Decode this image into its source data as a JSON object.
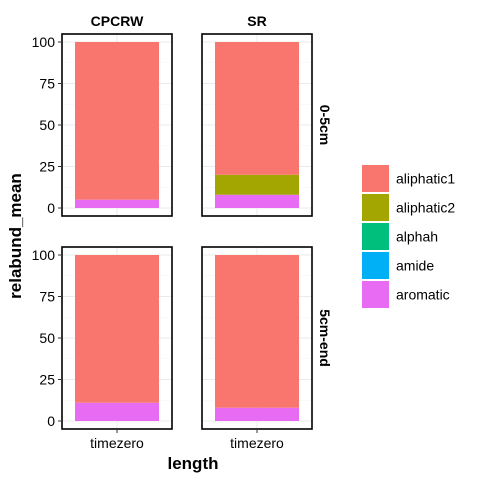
{
  "chart_data": {
    "type": "bar",
    "stacked": true,
    "xlabel": "length",
    "ylabel": "relabund_mean",
    "ylim": [
      0,
      100
    ],
    "yticks": [
      0,
      25,
      50,
      75,
      100
    ],
    "facet_cols": [
      "CPCRW",
      "SR"
    ],
    "facet_rows": [
      "0-5cm",
      "5cm-end"
    ],
    "categories": [
      "timezero"
    ],
    "legend_position": "right",
    "legend": [
      {
        "name": "aliphatic1",
        "color": "#F8766D"
      },
      {
        "name": "aliphatic2",
        "color": "#A3A500"
      },
      {
        "name": "alphah",
        "color": "#00BF7D"
      },
      {
        "name": "amide",
        "color": "#00B0F6"
      },
      {
        "name": "aromatic",
        "color": "#E76BF3"
      }
    ],
    "panels": [
      {
        "col": "CPCRW",
        "row": "0-5cm",
        "segments": [
          {
            "group": "aromatic",
            "value": 5
          },
          {
            "group": "aliphatic1",
            "value": 95
          }
        ]
      },
      {
        "col": "SR",
        "row": "0-5cm",
        "segments": [
          {
            "group": "aromatic",
            "value": 8
          },
          {
            "group": "aliphatic2",
            "value": 12
          },
          {
            "group": "aliphatic1",
            "value": 80
          }
        ]
      },
      {
        "col": "CPCRW",
        "row": "5cm-end",
        "segments": [
          {
            "group": "aromatic",
            "value": 11
          },
          {
            "group": "aliphatic1",
            "value": 89
          }
        ]
      },
      {
        "col": "SR",
        "row": "5cm-end",
        "segments": [
          {
            "group": "aromatic",
            "value": 8
          },
          {
            "group": "aliphatic1",
            "value": 92
          }
        ]
      }
    ]
  }
}
